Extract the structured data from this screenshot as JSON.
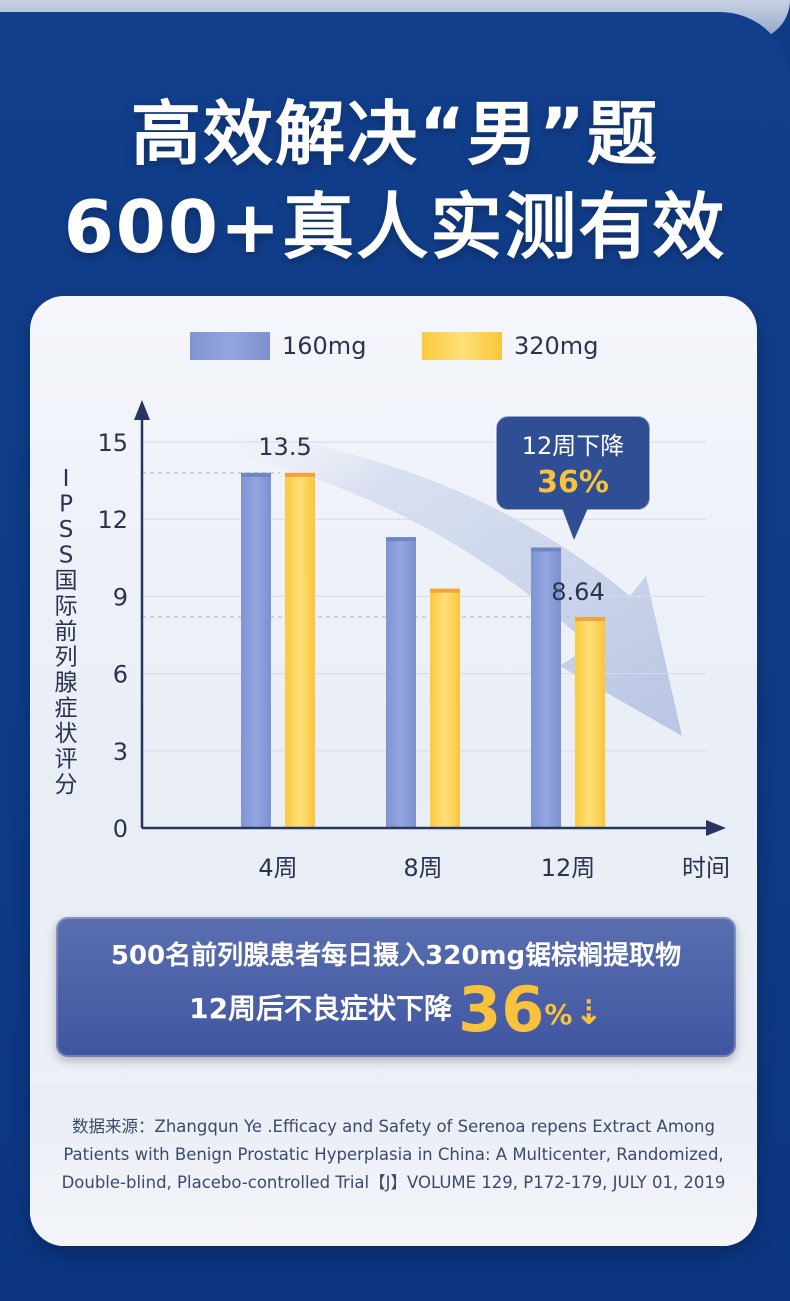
{
  "headline": {
    "line1": "高效解决“男”题",
    "line2": "600+真人实测有效"
  },
  "colors": {
    "series_160": "#8b9fd8",
    "series_320": "#fcd14e",
    "axis": "#26365f",
    "accent_yellow": "#f9c23c",
    "callout_bg": "#2f4e93"
  },
  "chart_data": {
    "type": "bar",
    "categories": [
      "4周",
      "8周",
      "12周"
    ],
    "series": [
      {
        "name": "160mg",
        "values": [
          13.8,
          11.3,
          10.9
        ]
      },
      {
        "name": "320mg",
        "values": [
          13.8,
          9.3,
          8.2
        ]
      }
    ],
    "xlabel": "时间",
    "ylabel": "IPSS国际前列腺症状评分",
    "yticks": [
      0,
      3,
      6,
      9,
      12,
      15
    ],
    "ylim": [
      0,
      16
    ],
    "legend_position": "top",
    "grid": true,
    "data_labels": [
      "13.5",
      "8.64"
    ],
    "callout": {
      "line1": "12周下降",
      "line2": "36%"
    }
  },
  "banner": {
    "line1": "500名前列腺患者每日摄入320mg锯棕榈提取物",
    "line2": "12周后不良症状下降",
    "big_value": "36",
    "percent": "%"
  },
  "source": {
    "line1": "数据来源：Zhangqun Ye .Efficacy and Safety of Serenoa repens Extract Among",
    "line2": "Patients with Benign Prostatic Hyperplasia in China: A Multicenter, Randomized,",
    "line3": "Double-blind, Placebo-controlled Trial【J】VOLUME 129, P172-179, JULY 01, 2019"
  }
}
